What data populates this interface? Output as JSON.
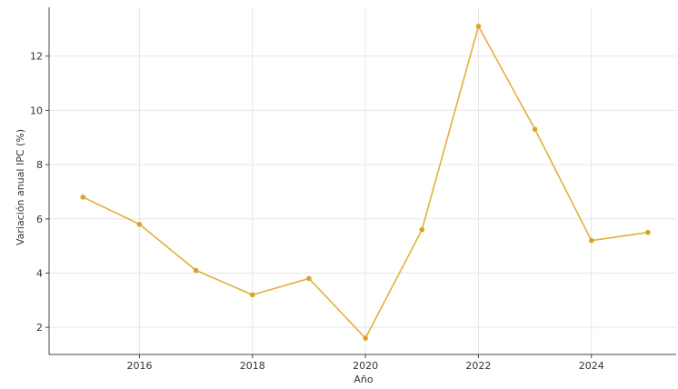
{
  "chart_data": {
    "type": "line",
    "title": "",
    "xlabel": "Año",
    "ylabel": "Variación anual IPC (%)",
    "x": [
      2015,
      2016,
      2017,
      2018,
      2019,
      2020,
      2021,
      2022,
      2023,
      2024,
      2025
    ],
    "series": [
      {
        "values": [
          6.8,
          5.8,
          4.1,
          3.2,
          3.8,
          1.6,
          5.6,
          13.1,
          9.3,
          5.2,
          5.5
        ]
      }
    ],
    "xlim": [
      2014.4,
      2025.5
    ],
    "ylim": [
      1.0,
      13.8
    ],
    "xticks": [
      2016,
      2018,
      2020,
      2022,
      2024
    ],
    "yticks": [
      2,
      4,
      6,
      8,
      10,
      12
    ],
    "grid": true,
    "line_color": "#e3b03a",
    "marker_color": "#d9a32a"
  }
}
